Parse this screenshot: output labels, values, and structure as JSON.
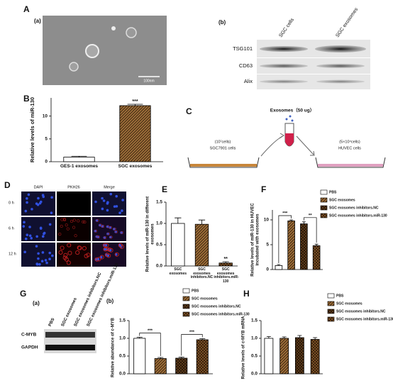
{
  "figure": {
    "labels": [
      "A",
      "(a)",
      "(b)",
      "B",
      "C",
      "D",
      "E",
      "F",
      "G",
      "(a)",
      "(b)",
      "H"
    ]
  },
  "micrograph": {
    "scale_bar": "100nm"
  },
  "blot_A": {
    "columns": [
      "SGC cells",
      "SGC exosomes"
    ],
    "rows": [
      "TSG101",
      "CD63",
      "Alix"
    ]
  },
  "diagram_C": {
    "exosomes": "Exosomes（50 ug）",
    "left_count": "(10⁷cells)",
    "left_cells": "SGC7901 cells",
    "right_count": "(5×10⁴cells)",
    "right_cells": "HUVEC cells"
  },
  "fluorescence_D": {
    "columns": [
      "DAPI",
      "PKH26",
      "Merge"
    ],
    "rows": [
      "0 h",
      "6 h",
      "12 h"
    ]
  },
  "blot_G": {
    "columns": [
      "PBS",
      "SGC exosomes",
      "SGC exosomes inhibitors.NC",
      "SGC exosomes inhibitors.miR-130"
    ],
    "rows": [
      "C-MYB",
      "GAPDH"
    ]
  },
  "chart_data": [
    {
      "type": "bar",
      "ylabel": "Relative levels of miR-130",
      "categories": [
        "GES-1 exosomes",
        "SGC exosomes"
      ],
      "values": [
        1.0,
        12.3
      ],
      "errors": [
        0.2,
        0.3
      ],
      "colors": [
        "#ffffff",
        "#a0703a"
      ],
      "patterns": [
        "none",
        "diagonal"
      ],
      "ylim": [
        0,
        14
      ],
      "yticks": [
        0,
        5,
        10
      ],
      "annotations": [
        "***"
      ]
    },
    {
      "type": "bar",
      "ylabel": "Relative levels of miR-130 in different exosomes",
      "categories": [
        "SGC exosomes",
        "SGC exosomes inhibitors.NC",
        "SGC exosomes inhibitors.miR-130"
      ],
      "values": [
        1.0,
        0.98,
        0.07
      ],
      "errors": [
        0.13,
        0.1,
        0.03
      ],
      "colors": [
        "#ffffff",
        "#a0703a",
        "#8a5a2a"
      ],
      "patterns": [
        "none",
        "diagonal",
        "cross"
      ],
      "ylim": [
        0,
        1.5
      ],
      "yticks": [
        {
          "value": 0,
          "label": "0.0"
        },
        0.5,
        {
          "value": 1,
          "label": "1.0"
        },
        1.5
      ],
      "annotations": [
        "**"
      ]
    },
    {
      "type": "bar",
      "ylabel": "Relative levels of miR-130 in HUVEC incubated with exosomes",
      "series": [
        {
          "name": "PBS",
          "color": "#ffffff",
          "pattern": "none",
          "values": [
            0.8
          ],
          "errors": [
            0.2
          ]
        },
        {
          "name": "SGC exosomes",
          "color": "#a0703a",
          "pattern": "diagonal",
          "values": [
            9.8
          ],
          "errors": [
            0.2
          ]
        },
        {
          "name": "SGC exosomes  inhibitors.NC",
          "color": "#5a3a1a",
          "pattern": "checker",
          "values": [
            9.2
          ],
          "errors": [
            0.4
          ]
        },
        {
          "name": "SGC exosomes  inhibitors.miR-130",
          "color": "#8a5a2a",
          "pattern": "cross",
          "values": [
            4.8
          ],
          "errors": [
            0.3
          ]
        }
      ],
      "ylim": [
        0,
        12
      ],
      "yticks": [
        0,
        5,
        10
      ],
      "annotations": [
        "***",
        "**"
      ]
    },
    {
      "type": "bar",
      "ylabel": "Relative abundance of c-MYB",
      "series": [
        {
          "name": "PBS",
          "color": "#ffffff",
          "pattern": "none",
          "values": [
            1.0
          ],
          "errors": [
            0.03
          ]
        },
        {
          "name": "SGC exosomes",
          "color": "#a0703a",
          "pattern": "diagonal",
          "values": [
            0.43
          ],
          "errors": [
            0.03
          ]
        },
        {
          "name": "SGC exosomes  inhibitors.NC",
          "color": "#5a3a1a",
          "pattern": "checker",
          "values": [
            0.44
          ],
          "errors": [
            0.03
          ]
        },
        {
          "name": "SGC exosomes  inhibitors.miR-130",
          "color": "#8a5a2a",
          "pattern": "cross",
          "values": [
            0.96
          ],
          "errors": [
            0.03
          ]
        }
      ],
      "ylim": [
        0,
        1.5
      ],
      "yticks": [
        {
          "value": 0,
          "label": "0.0"
        },
        0.5,
        {
          "value": 1,
          "label": "1.0"
        },
        1.5
      ],
      "annotations": [
        "***",
        "***"
      ]
    },
    {
      "type": "bar",
      "ylabel": "Relative levels of c-MYB mRNA",
      "series": [
        {
          "name": "PBS",
          "color": "#ffffff",
          "pattern": "none",
          "values": [
            1.0
          ],
          "errors": [
            0.05
          ]
        },
        {
          "name": "SGC exosomes",
          "color": "#a0703a",
          "pattern": "diagonal",
          "values": [
            1.0
          ],
          "errors": [
            0.04
          ]
        },
        {
          "name": "SGC exosomes  inhibitors.NC",
          "color": "#5a3a1a",
          "pattern": "checker",
          "values": [
            1.02
          ],
          "errors": [
            0.06
          ]
        },
        {
          "name": "SGC exosomes  inhibitors.miR-130",
          "color": "#8a5a2a",
          "pattern": "cross",
          "values": [
            0.97
          ],
          "errors": [
            0.05
          ]
        }
      ],
      "ylim": [
        0,
        1.5
      ],
      "yticks": [
        {
          "value": 0,
          "label": "0.0"
        },
        0.5,
        {
          "value": 1,
          "label": "1.0"
        },
        1.5
      ],
      "annotations": []
    }
  ]
}
